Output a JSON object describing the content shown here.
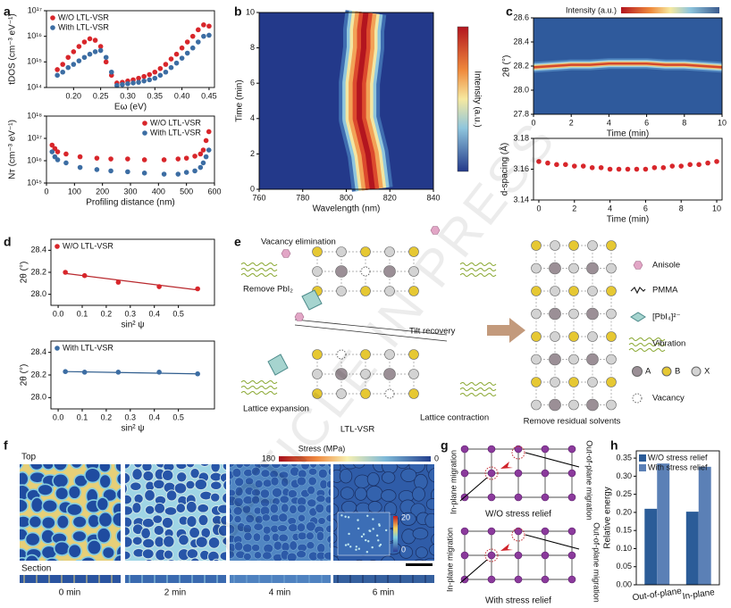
{
  "chart_data": [
    {
      "type": "scatter",
      "x_label": "Eω (eV)",
      "y_label": "tDOS (cm⁻³ eV⁻¹)",
      "log_y": true,
      "legend": "upper left",
      "xlim": [
        0.15,
        0.46
      ],
      "xticks": [
        {
          "value": 0.2,
          "label": "0.20"
        },
        0.25,
        {
          "value": 0.3,
          "label": "0.30"
        },
        0.35,
        {
          "value": 0.4,
          "label": "0.40"
        },
        0.45
      ],
      "ylim": [
        100000000000000.0,
        1e+17
      ],
      "yticks": [
        {
          "value": 100000000000000.0,
          "label": "10¹⁴"
        },
        {
          "value": 1000000000000000.0,
          "label": "10¹⁵"
        },
        {
          "value": 1e+16,
          "label": "10¹⁶"
        },
        {
          "value": 1e+17,
          "label": "10¹⁷"
        }
      ],
      "x": [
        0.17,
        0.18,
        0.19,
        0.2,
        0.21,
        0.22,
        0.23,
        0.24,
        0.25,
        0.26,
        0.27,
        0.28,
        0.29,
        0.3,
        0.31,
        0.32,
        0.33,
        0.34,
        0.35,
        0.36,
        0.37,
        0.38,
        0.39,
        0.4,
        0.41,
        0.42,
        0.43,
        0.44,
        0.45
      ],
      "series": [
        {
          "name": "W/O LTL-VSR",
          "color": "#d8262b",
          "values": [
            500000000000000.0,
            800000000000000.0,
            1500000000000000.0,
            2500000000000000.0,
            4000000000000000.0,
            6000000000000000.0,
            8000000000000000.0,
            7000000000000000.0,
            4000000000000000.0,
            1000000000000000.0,
            300000000000000.0,
            150000000000000.0,
            160000000000000.0,
            180000000000000.0,
            200000000000000.0,
            230000000000000.0,
            270000000000000.0,
            320000000000000.0,
            400000000000000.0,
            550000000000000.0,
            800000000000000.0,
            1300000000000000.0,
            2000000000000000.0,
            3500000000000000.0,
            6000000000000000.0,
            1e+16,
            1.8e+16,
            2.8e+16,
            2.5e+16
          ]
        },
        {
          "name": "With LTL-VSR",
          "color": "#3c6da3",
          "values": [
            300000000000000.0,
            400000000000000.0,
            600000000000000.0,
            800000000000000.0,
            1100000000000000.0,
            1500000000000000.0,
            2000000000000000.0,
            2500000000000000.0,
            2800000000000000.0,
            1500000000000000.0,
            400000000000000.0,
            120000000000000.0,
            130000000000000.0,
            140000000000000.0,
            150000000000000.0,
            160000000000000.0,
            180000000000000.0,
            200000000000000.0,
            230000000000000.0,
            300000000000000.0,
            400000000000000.0,
            600000000000000.0,
            900000000000000.0,
            1400000000000000.0,
            2200000000000000.0,
            3500000000000000.0,
            6000000000000000.0,
            1e+16,
            1.1e+16
          ]
        }
      ]
    },
    {
      "type": "scatter",
      "x_label": "Profiling distance (nm)",
      "y_label": "Nᴛ (cm⁻³ eV⁻¹)",
      "log_y": true,
      "legend": "upper right",
      "xlim": [
        0,
        600
      ],
      "xticks": [
        0,
        100,
        200,
        300,
        400,
        500,
        600
      ],
      "ylim": [
        1000000000000000.0,
        1e+18
      ],
      "yticks": [
        {
          "value": 1000000000000000.0,
          "label": "10¹⁵"
        },
        {
          "value": 1e+16,
          "label": "10¹⁶"
        },
        {
          "value": 1e+17,
          "label": "10¹⁷"
        },
        {
          "value": 1e+18,
          "label": "10¹⁸"
        }
      ],
      "x": [
        20,
        30,
        40,
        70,
        120,
        180,
        230,
        290,
        350,
        420,
        470,
        500,
        530,
        550,
        560,
        570,
        580
      ],
      "series": [
        {
          "name": "W/O LTL-VSR",
          "color": "#d8262b",
          "values": [
            5e+16,
            3.5e+16,
            2.5e+16,
            2e+16,
            1.5e+16,
            1.3e+16,
            1.2e+16,
            1.2e+16,
            1.1e+16,
            1.1e+16,
            1.2e+16,
            1.3e+16,
            1.6e+16,
            2e+16,
            3e+16,
            8e+16,
            2e+17
          ]
        },
        {
          "name": "With LTL-VSR",
          "color": "#3c6da3",
          "values": [
            2.5e+16,
            1.5e+16,
            1.1e+16,
            8000000000000000.0,
            5000000000000000.0,
            4000000000000000.0,
            3500000000000000.0,
            3200000000000000.0,
            2800000000000000.0,
            2500000000000000.0,
            2500000000000000.0,
            3000000000000000.0,
            3500000000000000.0,
            5000000000000000.0,
            8000000000000000.0,
            1.5e+16,
            3e+16
          ]
        }
      ]
    },
    {
      "type": "heatmap",
      "x_label": "Wavelength (nm)",
      "y_label": "Time (min)",
      "colorbar_label": "Intensity (a.u.)",
      "xlim": [
        760,
        840
      ],
      "xticks": [
        760,
        780,
        800,
        820,
        840
      ],
      "ylim": [
        0,
        10
      ],
      "yticks": [
        0,
        2,
        4,
        6,
        8,
        10
      ],
      "y": [
        0,
        1,
        2,
        3,
        4,
        5,
        6,
        7,
        8,
        9,
        10
      ],
      "values": [
        812,
        811,
        810,
        808,
        806,
        806,
        806,
        807,
        808,
        808,
        809
      ]
    },
    {
      "type": "heatmap",
      "x_label": "Time (min)",
      "y_label": "2θ (°)",
      "colorbar_label": "Intensity (a.u.)",
      "xlim": [
        0,
        10
      ],
      "xticks": [
        0,
        2,
        4,
        6,
        8,
        10
      ],
      "ylim": [
        27.8,
        28.6
      ],
      "yticks": [
        27.8,
        {
          "value": 28,
          "label": "28.0"
        },
        28.2,
        28.4,
        28.6
      ],
      "x": [
        0,
        1,
        2,
        3,
        4,
        5,
        6,
        7,
        8,
        9,
        10
      ],
      "values": [
        28.19,
        28.2,
        28.21,
        28.21,
        28.22,
        28.22,
        28.22,
        28.21,
        28.21,
        28.2,
        28.19
      ]
    },
    {
      "type": "scatter",
      "x_label": "Time (min)",
      "y_label": "d-spacing (Å)",
      "color": "#d8262b",
      "xlim": [
        -0.3,
        10.3
      ],
      "xticks": [
        0,
        2,
        4,
        6,
        8,
        10
      ],
      "ylim": [
        3.14,
        3.18
      ],
      "yticks": [
        3.14,
        3.16,
        3.18
      ],
      "x": [
        0,
        0.5,
        1,
        1.5,
        2,
        2.5,
        3,
        3.5,
        4,
        4.5,
        5,
        5.5,
        6,
        6.5,
        7,
        7.5,
        8,
        8.5,
        9,
        9.5,
        10
      ],
      "values": [
        3.165,
        3.164,
        3.163,
        3.163,
        3.162,
        3.162,
        3.161,
        3.161,
        3.16,
        3.16,
        3.16,
        3.16,
        3.16,
        3.161,
        3.161,
        3.162,
        3.162,
        3.163,
        3.163,
        3.164,
        3.165
      ]
    },
    {
      "type": "scatter",
      "x_label": "sin² ψ",
      "y_label": "2θ (°)",
      "legend": "upper left",
      "xlim": [
        -0.03,
        0.65
      ],
      "xticks": [
        {
          "value": 0,
          "label": "0.0"
        },
        0.1,
        0.2,
        0.3,
        0.4,
        0.5
      ],
      "ylim": [
        27.9,
        28.5
      ],
      "yticks": [
        {
          "value": 28,
          "label": "28.0"
        },
        28.2,
        28.4
      ],
      "x": [
        0.03,
        0.11,
        0.25,
        0.42,
        0.58
      ],
      "series": [
        {
          "name": "W/O LTL-VSR",
          "color": "#d8262b",
          "values": [
            28.2,
            28.17,
            28.11,
            28.07,
            28.05
          ]
        }
      ],
      "trend": {
        "color": "#b8282d",
        "x": [
          0.03,
          0.58
        ],
        "values": [
          28.19,
          28.04
        ]
      }
    },
    {
      "type": "scatter",
      "x_label": "sin² ψ",
      "y_label": "2θ (°)",
      "legend": "upper left",
      "xlim": [
        -0.03,
        0.65
      ],
      "xticks": [
        {
          "value": 0,
          "label": "0.0"
        },
        0.1,
        0.2,
        0.3,
        0.4,
        0.5
      ],
      "ylim": [
        27.9,
        28.5
      ],
      "yticks": [
        {
          "value": 28,
          "label": "28.0"
        },
        28.2,
        28.4
      ],
      "x": [
        0.03,
        0.11,
        0.25,
        0.42,
        0.58
      ],
      "series": [
        {
          "name": "With LTL-VSR",
          "color": "#3c6da3",
          "values": [
            28.23,
            28.225,
            28.225,
            28.225,
            28.21
          ]
        }
      ],
      "trend": {
        "color": "#2f5d8e",
        "x": [
          0.03,
          0.58
        ],
        "values": [
          28.23,
          28.21
        ]
      }
    },
    {
      "type": "bar",
      "y_label": "Relative energy",
      "legend": "upper left",
      "categories": [
        "Out-of-plane",
        "In-plane"
      ],
      "ylim": [
        0,
        0.37
      ],
      "yticks": [
        {
          "value": 0,
          "label": "0.00"
        },
        0.05,
        {
          "value": 0.1,
          "label": "0.10"
        },
        0.15,
        {
          "value": 0.2,
          "label": "0.20"
        },
        0.25,
        {
          "value": 0.3,
          "label": "0.30"
        },
        0.35
      ],
      "series": [
        {
          "name": "W/O stress relief",
          "color": "#2b5c98",
          "values": [
            0.21,
            0.202
          ]
        },
        {
          "name": "With stress relief",
          "color": "#5b80b6",
          "values": [
            0.335,
            0.326
          ]
        }
      ]
    }
  ],
  "panel_labels": [
    "a",
    "b",
    "c",
    "d",
    "e",
    "f",
    "g",
    "h"
  ],
  "panel_e": {
    "annotations": [
      "Vacancy elimination",
      "Remove PbI₂",
      "Tilt recovery",
      "Lattice expansion",
      "Lattice contraction",
      "LTL-VSR",
      "Remove residual solvents"
    ],
    "legend": [
      "Anisole",
      "PMMA",
      "[PbI₄]²⁻",
      "Vibration",
      "A",
      "B",
      "X",
      "Vacancy"
    ]
  },
  "panel_f": {
    "top_label": "Top",
    "section_label": "Section",
    "times": [
      "0 min",
      "2 min",
      "4 min",
      "6 min"
    ],
    "colorbar": {
      "label": "Stress (MPa)",
      "max": 180,
      "min": 0
    },
    "inset_colorbar": {
      "max": 20,
      "min": 0
    }
  },
  "panel_g": {
    "titles": [
      "W/O stress relief",
      "With stress relief"
    ],
    "labels": [
      "In-plane migration",
      "Out-of-plane migration",
      "In-plane migration",
      "Out-of-plane migration"
    ]
  },
  "watermark": "ARTICLE IN PRESS"
}
